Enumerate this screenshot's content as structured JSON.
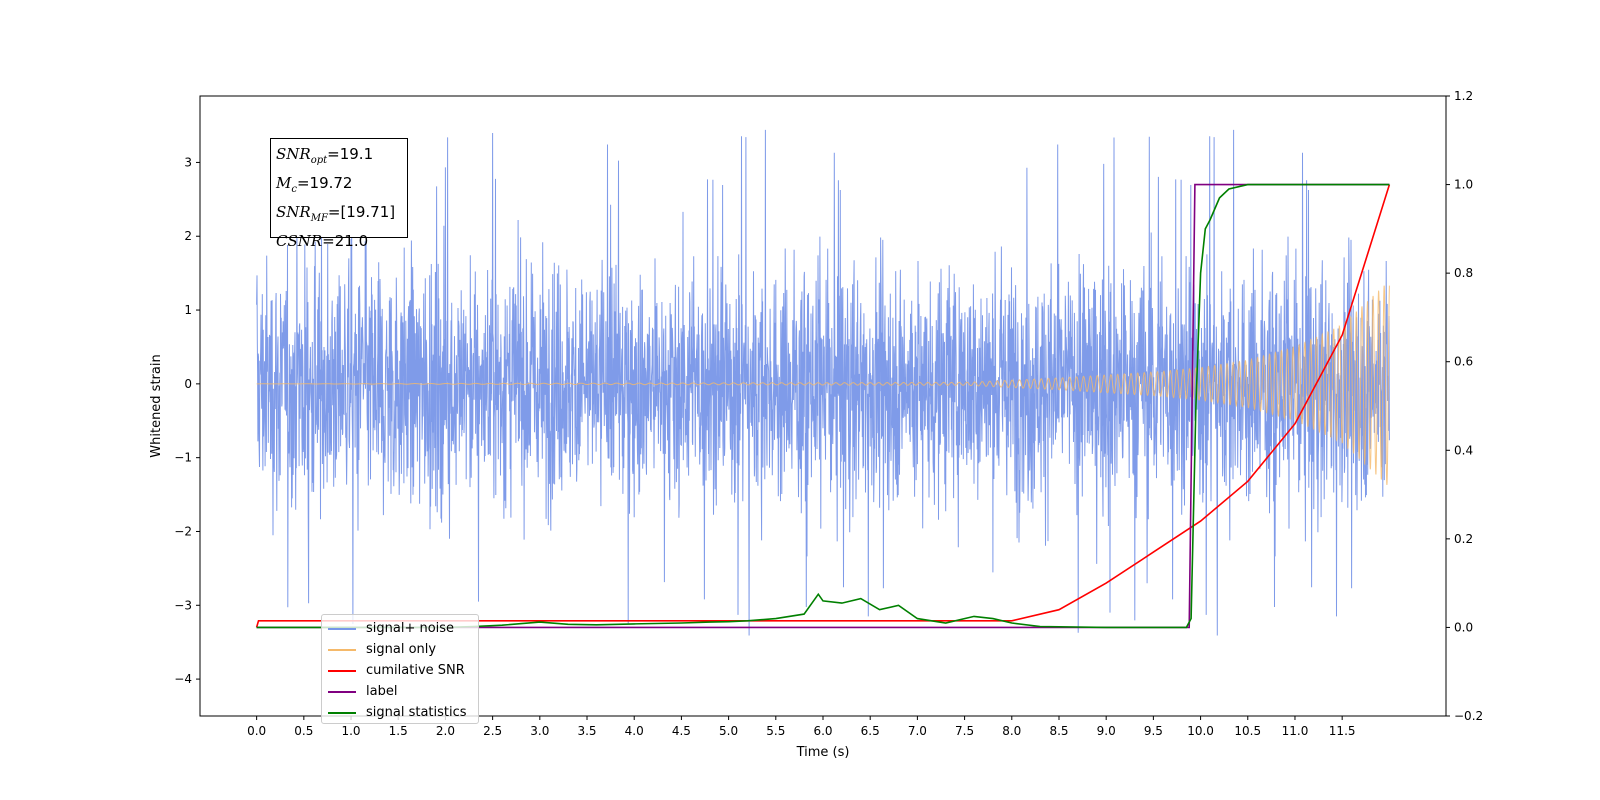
{
  "chart_data": {
    "type": "line",
    "xlabel": "Time (s)",
    "ylabel": "Whitened strain",
    "xlim": [
      -0.6,
      12.6
    ],
    "ylim": [
      -4.5,
      3.9
    ],
    "ylim_right": [
      -0.2,
      1.2
    ],
    "x_ticks": [
      0.0,
      0.5,
      1.0,
      1.5,
      2.0,
      2.5,
      3.0,
      3.5,
      4.0,
      4.5,
      5.0,
      5.5,
      6.0,
      6.5,
      7.0,
      7.5,
      8.0,
      8.5,
      9.0,
      9.5,
      10.0,
      10.5,
      11.0,
      11.5
    ],
    "x_tick_labels": [
      "0.0",
      "0.5",
      "1.0",
      "1.5",
      "2.0",
      "2.5",
      "3.0",
      "3.5",
      "4.0",
      "4.5",
      "5.0",
      "5.5",
      "6.0",
      "6.5",
      "7.0",
      "7.5",
      "8.0",
      "8.5",
      "9.0",
      "9.5",
      "10.0",
      "10.5",
      "11.0",
      "11.5"
    ],
    "y_ticks_left": [
      -4,
      -3,
      -2,
      -1,
      0,
      1,
      2,
      3
    ],
    "y_tick_labels_left": [
      "−4",
      "−3",
      "−2",
      "−1",
      "0",
      "1",
      "2",
      "3"
    ],
    "y_ticks_right": [
      -0.2,
      0.0,
      0.2,
      0.4,
      0.6,
      0.8,
      1.0,
      1.2
    ],
    "y_tick_labels_right": [
      "−0.2",
      "0.0",
      "0.2",
      "0.4",
      "0.6",
      "0.8",
      "1.0",
      "1.2"
    ],
    "grid": false,
    "legend_position": "lower-left",
    "noise_envelope": {
      "t_start": 0.0,
      "t_end": 12.0,
      "typical_amplitude": [
        -2.2,
        2.2
      ],
      "max": 3.55,
      "min": -4.1
    },
    "series": [
      {
        "name": "signal+ noise",
        "axis": "left",
        "color": "#7896e8",
        "description": "whitened noise plus signal, typical range ±2.2 with spikes to 3.55 and -4.1",
        "x": [
          0.0,
          12.0
        ]
      },
      {
        "name": "signal only",
        "axis": "left",
        "color": "#f5b96a",
        "envelope_x": [
          0.0,
          7.5,
          8.5,
          9.5,
          10.0,
          10.5,
          11.0,
          11.5,
          12.0
        ],
        "envelope_y": [
          0.0,
          0.02,
          0.08,
          0.16,
          0.22,
          0.32,
          0.5,
          0.8,
          1.4
        ]
      },
      {
        "name": "cumilative SNR",
        "axis": "right",
        "color": "#ff0000",
        "x": [
          0.0,
          0.02,
          8.0,
          8.5,
          9.0,
          9.5,
          10.0,
          10.5,
          11.0,
          11.5,
          12.0
        ],
        "y": [
          0.0,
          0.015,
          0.015,
          0.04,
          0.1,
          0.17,
          0.24,
          0.33,
          0.46,
          0.66,
          1.0
        ]
      },
      {
        "name": "label",
        "axis": "right",
        "color": "#800080",
        "x": [
          0.0,
          9.88,
          9.94,
          9.94,
          12.0
        ],
        "y": [
          0.0,
          0.0,
          1.0,
          1.0,
          1.0
        ]
      },
      {
        "name": "signal statistics",
        "axis": "right",
        "color": "#008000",
        "x": [
          0.0,
          2.0,
          2.3,
          2.6,
          3.0,
          3.3,
          3.6,
          4.0,
          4.5,
          4.8,
          5.0,
          5.2,
          5.5,
          5.8,
          5.95,
          6.0,
          6.2,
          6.4,
          6.6,
          6.8,
          7.0,
          7.3,
          7.6,
          7.8,
          8.0,
          8.3,
          9.0,
          9.5,
          9.85,
          9.9,
          9.95,
          10.0,
          10.05,
          10.1,
          10.2,
          10.3,
          10.5,
          12.0
        ],
        "y": [
          0.0,
          0.0,
          0.002,
          0.005,
          0.012,
          0.007,
          0.006,
          0.008,
          0.01,
          0.012,
          0.013,
          0.015,
          0.02,
          0.03,
          0.075,
          0.06,
          0.055,
          0.065,
          0.04,
          0.05,
          0.02,
          0.01,
          0.025,
          0.02,
          0.01,
          0.002,
          0.0,
          0.0,
          0.0,
          0.02,
          0.5,
          0.8,
          0.9,
          0.92,
          0.97,
          0.99,
          1.0,
          1.0
        ]
      }
    ]
  },
  "info_box": {
    "snr_opt_prefix": "SNR",
    "snr_opt_sub": "opt",
    "snr_opt_value": "=19.1",
    "mc_prefix": "M",
    "mc_sub": "c",
    "mc_value": "=19.72",
    "snr_mf_prefix": "SNR",
    "snr_mf_sub": "MF",
    "snr_mf_value": "=[19.71]",
    "csnr_prefix": "CSNR",
    "csnr_value": "=21.0"
  },
  "legend": {
    "items": [
      {
        "label": "signal+ noise",
        "color": "#7896e8"
      },
      {
        "label": "signal only",
        "color": "#f5b96a"
      },
      {
        "label": "cumilative SNR",
        "color": "#ff0000"
      },
      {
        "label": "label",
        "color": "#800080"
      },
      {
        "label": "signal statistics",
        "color": "#008000"
      }
    ]
  }
}
